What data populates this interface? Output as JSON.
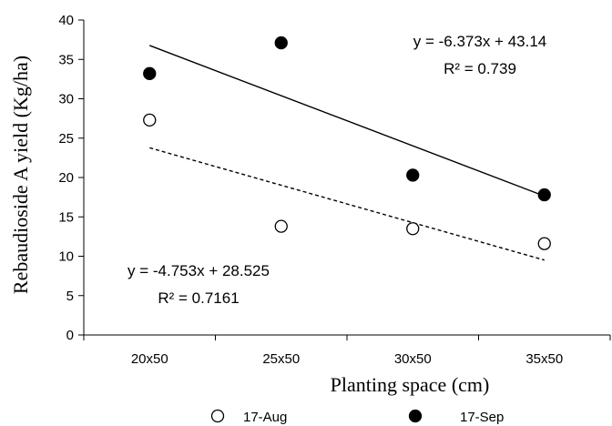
{
  "chart_data": {
    "type": "scatter",
    "categories": [
      "20x50",
      "25x50",
      "30x50",
      "35x50"
    ],
    "xlabel": "Planting space (cm)",
    "ylabel": "Rebaudioside A yield (Kg/ha)",
    "ylim": [
      0,
      40
    ],
    "yticks": [
      0,
      5,
      10,
      15,
      20,
      25,
      30,
      35,
      40
    ],
    "grid": false,
    "legend_position": "bottom",
    "series": [
      {
        "name": "17-Aug",
        "marker": "open-circle",
        "values": [
          27.3,
          13.8,
          13.5,
          11.6
        ],
        "trendline": {
          "slope": -4.753,
          "intercept": 28.525,
          "style": "dashed",
          "equation": "y = -4.753x + 28.525",
          "r2": "R² = 0.7161"
        }
      },
      {
        "name": "17-Sep",
        "marker": "filled-circle",
        "values": [
          33.2,
          37.1,
          20.3,
          17.8
        ],
        "trendline": {
          "slope": -6.373,
          "intercept": 43.14,
          "style": "solid",
          "equation": "y = -6.373x + 43.14",
          "r2": "R² = 0.739"
        }
      }
    ]
  }
}
